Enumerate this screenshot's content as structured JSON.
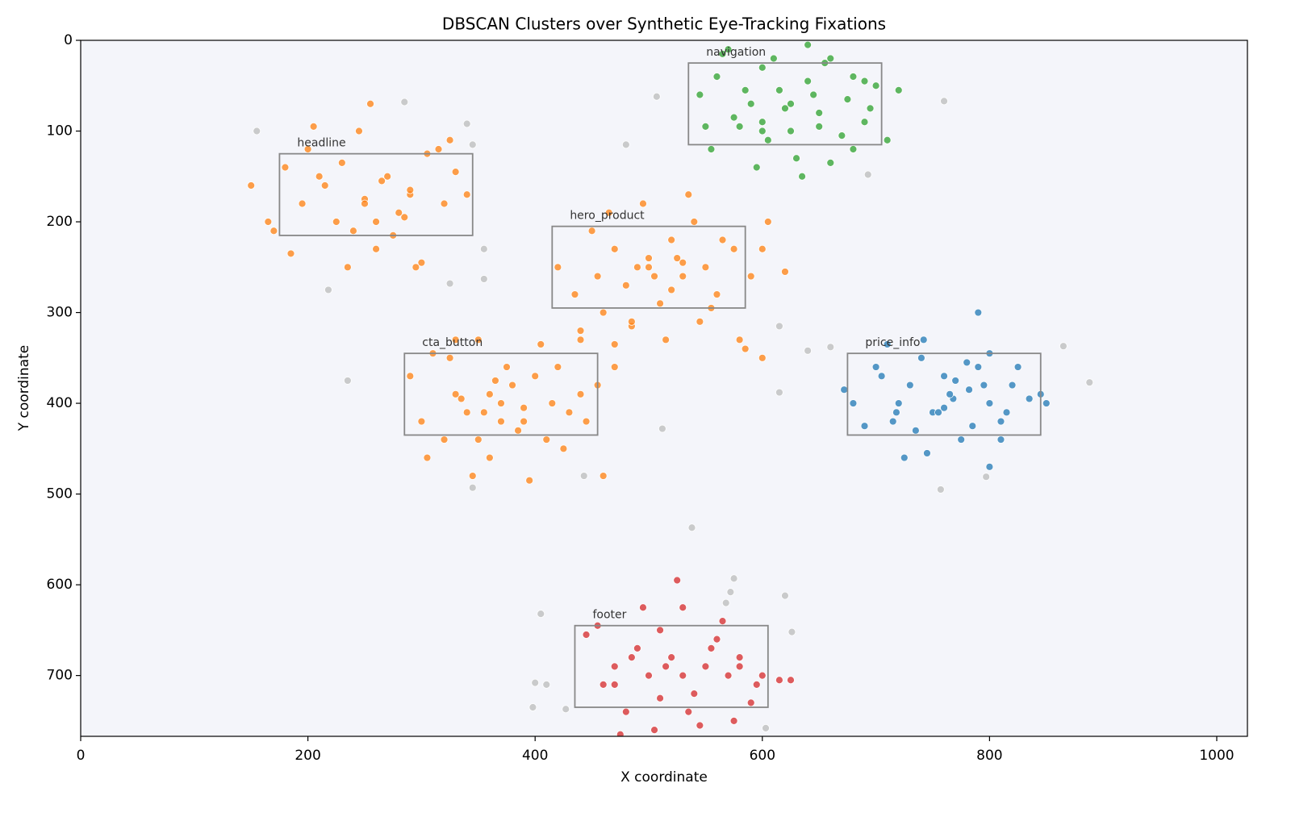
{
  "chart_data": {
    "type": "scatter",
    "title": "DBSCAN Clusters over Synthetic Eye-Tracking Fixations",
    "x_label": "X coordinate",
    "y_label": "Y coordinate",
    "xlim": [
      0,
      1027
    ],
    "ylim": [
      767,
      0
    ],
    "xticks": [
      0,
      200,
      400,
      600,
      800,
      1000
    ],
    "yticks": [
      0,
      100,
      200,
      300,
      400,
      500,
      600,
      700
    ],
    "grid": false,
    "series": [
      {
        "color": "#1f77b4",
        "x": [
          680,
          700,
          715,
          730,
          742,
          750,
          760,
          768,
          775,
          782,
          790,
          800,
          810,
          820,
          835,
          845,
          725,
          740,
          755,
          770,
          785,
          800,
          815,
          690,
          705,
          720,
          735,
          760,
          780,
          795,
          810,
          825,
          710,
          745,
          790,
          718,
          765,
          800,
          672,
          850
        ],
        "y": [
          400,
          360,
          420,
          380,
          330,
          410,
          370,
          395,
          440,
          385,
          360,
          400,
          420,
          380,
          395,
          390,
          460,
          350,
          410,
          375,
          425,
          345,
          410,
          425,
          370,
          400,
          430,
          405,
          355,
          380,
          440,
          360,
          335,
          455,
          300,
          410,
          390,
          470,
          385,
          400
        ]
      },
      {
        "color": "#ff7f0e",
        "x": [
          150,
          165,
          180,
          195,
          205,
          215,
          230,
          240,
          250,
          260,
          270,
          280,
          290,
          300,
          315,
          330,
          340,
          185,
          200,
          225,
          245,
          265,
          285,
          305,
          325,
          235,
          255,
          275,
          295,
          210,
          250,
          290,
          170,
          320,
          260,
          420,
          435,
          450,
          460,
          470,
          480,
          490,
          500,
          510,
          520,
          530,
          540,
          550,
          560,
          575,
          590,
          605,
          620,
          440,
          465,
          485,
          505,
          525,
          545,
          565,
          585,
          495,
          515,
          535,
          455,
          500,
          470,
          555,
          600,
          520,
          530,
          290,
          300,
          310,
          320,
          330,
          340,
          350,
          360,
          370,
          380,
          390,
          400,
          410,
          420,
          430,
          440,
          455,
          305,
          325,
          345,
          365,
          385,
          405,
          425,
          445,
          335,
          355,
          375,
          395,
          415,
          360,
          370,
          390,
          330,
          350,
          460,
          440,
          470,
          485,
          600,
          580
        ],
        "y": [
          160,
          200,
          140,
          180,
          95,
          160,
          135,
          210,
          175,
          230,
          150,
          190,
          170,
          245,
          120,
          145,
          170,
          235,
          120,
          200,
          100,
          155,
          195,
          125,
          110,
          250,
          70,
          215,
          250,
          150,
          180,
          165,
          210,
          180,
          200,
          250,
          280,
          210,
          300,
          230,
          270,
          250,
          240,
          290,
          220,
          260,
          200,
          250,
          280,
          230,
          260,
          200,
          255,
          320,
          190,
          315,
          260,
          240,
          310,
          220,
          340,
          180,
          330,
          170,
          260,
          250,
          335,
          295,
          230,
          275,
          245,
          370,
          420,
          345,
          440,
          390,
          410,
          330,
          460,
          400,
          380,
          420,
          370,
          440,
          360,
          410,
          390,
          380,
          460,
          350,
          480,
          375,
          430,
          335,
          450,
          420,
          395,
          410,
          360,
          485,
          400,
          390,
          420,
          405,
          330,
          440,
          480,
          330,
          360,
          310,
          350,
          330
        ]
      },
      {
        "color": "#2ca02c",
        "x": [
          545,
          560,
          575,
          590,
          600,
          615,
          625,
          640,
          650,
          660,
          675,
          690,
          700,
          710,
          555,
          580,
          605,
          630,
          655,
          680,
          695,
          570,
          595,
          620,
          645,
          670,
          585,
          610,
          635,
          660,
          550,
          565,
          600,
          640,
          680,
          720,
          600,
          625,
          650,
          690
        ],
        "y": [
          60,
          40,
          85,
          70,
          30,
          55,
          100,
          45,
          80,
          20,
          65,
          90,
          50,
          110,
          120,
          95,
          110,
          130,
          25,
          40,
          75,
          10,
          140,
          75,
          60,
          105,
          55,
          20,
          150,
          135,
          95,
          15,
          90,
          5,
          120,
          55,
          100,
          70,
          95,
          45
        ]
      },
      {
        "color": "#d62728",
        "x": [
          445,
          460,
          470,
          480,
          490,
          500,
          510,
          520,
          530,
          540,
          550,
          560,
          570,
          580,
          590,
          600,
          615,
          625,
          455,
          475,
          495,
          515,
          535,
          555,
          575,
          595,
          505,
          525,
          545,
          565,
          485,
          530,
          510,
          470,
          580
        ],
        "y": [
          655,
          710,
          690,
          740,
          670,
          700,
          650,
          680,
          700,
          720,
          690,
          660,
          700,
          680,
          730,
          700,
          705,
          705,
          645,
          765,
          625,
          690,
          740,
          670,
          750,
          710,
          760,
          595,
          755,
          640,
          680,
          625,
          725,
          710,
          690
        ]
      },
      {
        "color": "#bbbbbb",
        "x": [
          155,
          285,
          340,
          345,
          480,
          507,
          760,
          693,
          218,
          325,
          355,
          355,
          235,
          615,
          615,
          640,
          660,
          512,
          865,
          888,
          345,
          443,
          757,
          797,
          538,
          405,
          400,
          410,
          398,
          427,
          575,
          568,
          572,
          620,
          626,
          603
        ],
        "y": [
          100,
          68,
          92,
          115,
          115,
          62,
          67,
          148,
          275,
          268,
          230,
          263,
          375,
          315,
          388,
          342,
          338,
          428,
          337,
          377,
          493,
          480,
          495,
          481,
          537,
          632,
          708,
          710,
          735,
          737,
          593,
          620,
          608,
          612,
          652,
          758
        ]
      }
    ],
    "regions": [
      {
        "label": "headline",
        "x": [
          175,
          345
        ],
        "y": [
          125,
          215
        ]
      },
      {
        "label": "hero_product",
        "x": [
          415,
          585
        ],
        "y": [
          205,
          295
        ]
      },
      {
        "label": "cta_button",
        "x": [
          285,
          455
        ],
        "y": [
          345,
          435
        ]
      },
      {
        "label": "navigation",
        "x": [
          535,
          705
        ],
        "y": [
          25,
          115
        ]
      },
      {
        "label": "price_info",
        "x": [
          675,
          845
        ],
        "y": [
          345,
          435
        ]
      },
      {
        "label": "footer",
        "x": [
          435,
          605
        ],
        "y": [
          645,
          735
        ]
      }
    ]
  }
}
